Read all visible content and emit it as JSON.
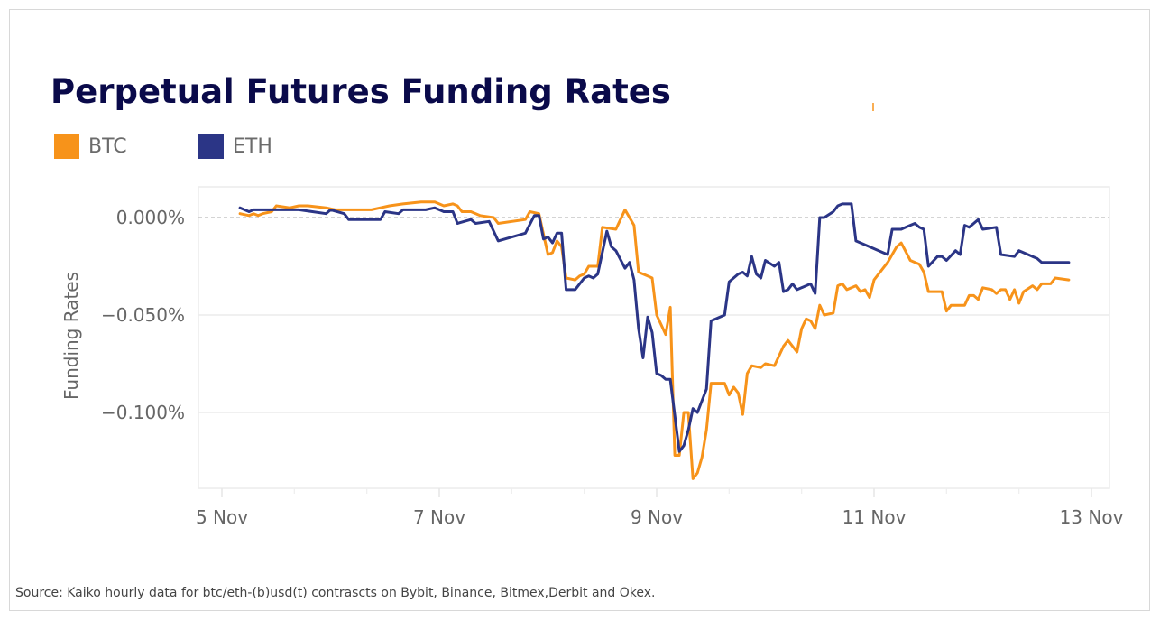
{
  "chart_data": {
    "type": "line",
    "title": "Perpetual Futures Funding Rates",
    "ylabel": "Funding Rates",
    "xlabel": "",
    "x_ticks": [
      "5 Nov",
      "7 Nov",
      "9 Nov",
      "11 Nov",
      "13 Nov"
    ],
    "y_ticks": [
      {
        "value": 0.0,
        "label": "0.000%"
      },
      {
        "value": -0.05,
        "label": "−0.050%"
      },
      {
        "value": -0.1,
        "label": "−0.100%"
      }
    ],
    "y_unit": "%",
    "grid": true,
    "zero_line": "dashed",
    "legend_placement": "top-left",
    "series": [
      {
        "name": "BTC",
        "color": "#f7931a",
        "points": [
          [
            "5 Nov 04:00",
            0.002
          ],
          [
            "5 Nov 06:00",
            0.001
          ],
          [
            "5 Nov 07:00",
            0.002
          ],
          [
            "5 Nov 08:00",
            0.001
          ],
          [
            "5 Nov 09:00",
            0.002
          ],
          [
            "5 Nov 11:00",
            0.003
          ],
          [
            "5 Nov 12:00",
            0.006
          ],
          [
            "5 Nov 15:00",
            0.005
          ],
          [
            "5 Nov 17:00",
            0.006
          ],
          [
            "5 Nov 19:00",
            0.006
          ],
          [
            "5 Nov 23:00",
            0.005
          ],
          [
            "6 Nov 01:00",
            0.004
          ],
          [
            "6 Nov 07:00",
            0.004
          ],
          [
            "6 Nov 09:00",
            0.004
          ],
          [
            "6 Nov 11:00",
            0.005
          ],
          [
            "6 Nov 13:00",
            0.006
          ],
          [
            "6 Nov 16:00",
            0.007
          ],
          [
            "6 Nov 20:00",
            0.008
          ],
          [
            "6 Nov 23:00",
            0.008
          ],
          [
            "7 Nov 01:00",
            0.006
          ],
          [
            "7 Nov 03:00",
            0.007
          ],
          [
            "7 Nov 04:00",
            0.006
          ],
          [
            "7 Nov 05:00",
            0.003
          ],
          [
            "7 Nov 07:00",
            0.003
          ],
          [
            "7 Nov 09:00",
            0.001
          ],
          [
            "7 Nov 12:00",
            0.0
          ],
          [
            "7 Nov 13:00",
            -0.003
          ],
          [
            "7 Nov 19:00",
            -0.001
          ],
          [
            "7 Nov 20:00",
            0.003
          ],
          [
            "7 Nov 22:00",
            0.002
          ],
          [
            "8 Nov 00:00",
            -0.019
          ],
          [
            "8 Nov 01:00",
            -0.018
          ],
          [
            "8 Nov 02:00",
            -0.012
          ],
          [
            "8 Nov 03:00",
            -0.015
          ],
          [
            "8 Nov 04:00",
            -0.031
          ],
          [
            "8 Nov 06:00",
            -0.032
          ],
          [
            "8 Nov 07:00",
            -0.03
          ],
          [
            "8 Nov 08:00",
            -0.029
          ],
          [
            "8 Nov 09:00",
            -0.025
          ],
          [
            "8 Nov 11:00",
            -0.025
          ],
          [
            "8 Nov 12:00",
            -0.005
          ],
          [
            "8 Nov 15:00",
            -0.006
          ],
          [
            "8 Nov 17:00",
            0.004
          ],
          [
            "8 Nov 19:00",
            -0.004
          ],
          [
            "8 Nov 20:00",
            -0.028
          ],
          [
            "8 Nov 22:00",
            -0.03
          ],
          [
            "8 Nov 23:00",
            -0.031
          ],
          [
            "9 Nov 00:00",
            -0.05
          ],
          [
            "9 Nov 01:00",
            -0.055
          ],
          [
            "9 Nov 02:00",
            -0.06
          ],
          [
            "9 Nov 03:00",
            -0.046
          ],
          [
            "9 Nov 04:00",
            -0.122
          ],
          [
            "9 Nov 05:00",
            -0.122
          ],
          [
            "9 Nov 06:00",
            -0.1
          ],
          [
            "9 Nov 07:00",
            -0.1
          ],
          [
            "9 Nov 08:00",
            -0.134
          ],
          [
            "9 Nov 09:00",
            -0.131
          ],
          [
            "9 Nov 10:00",
            -0.123
          ],
          [
            "9 Nov 11:00",
            -0.109
          ],
          [
            "9 Nov 12:00",
            -0.085
          ],
          [
            "9 Nov 15:00",
            -0.085
          ],
          [
            "9 Nov 16:00",
            -0.091
          ],
          [
            "9 Nov 17:00",
            -0.087
          ],
          [
            "9 Nov 18:00",
            -0.09
          ],
          [
            "9 Nov 19:00",
            -0.101
          ],
          [
            "9 Nov 20:00",
            -0.08
          ],
          [
            "9 Nov 21:00",
            -0.076
          ],
          [
            "9 Nov 23:00",
            -0.077
          ],
          [
            "10 Nov 00:00",
            -0.075
          ],
          [
            "10 Nov 02:00",
            -0.076
          ],
          [
            "10 Nov 04:00",
            -0.066
          ],
          [
            "10 Nov 05:00",
            -0.063
          ],
          [
            "10 Nov 07:00",
            -0.069
          ],
          [
            "10 Nov 08:00",
            -0.057
          ],
          [
            "10 Nov 09:00",
            -0.052
          ],
          [
            "10 Nov 10:00",
            -0.053
          ],
          [
            "10 Nov 11:00",
            -0.057
          ],
          [
            "10 Nov 12:00",
            -0.045
          ],
          [
            "10 Nov 13:00",
            -0.05
          ],
          [
            "10 Nov 15:00",
            -0.049
          ],
          [
            "10 Nov 16:00",
            -0.035
          ],
          [
            "10 Nov 17:00",
            -0.034
          ],
          [
            "10 Nov 18:00",
            -0.037
          ],
          [
            "10 Nov 20:00",
            -0.035
          ],
          [
            "10 Nov 21:00",
            -0.038
          ],
          [
            "10 Nov 22:00",
            -0.037
          ],
          [
            "10 Nov 23:00",
            -0.041
          ],
          [
            "11 Nov 00:00",
            -0.032
          ],
          [
            "11 Nov 02:00",
            -0.026
          ],
          [
            "11 Nov 03:00",
            -0.023
          ],
          [
            "11 Nov 04:00",
            -0.019
          ],
          [
            "11 Nov 05:00",
            -0.015
          ],
          [
            "11 Nov 06:00",
            -0.013
          ],
          [
            "11 Nov 08:00",
            -0.022
          ],
          [
            "11 Nov 10:00",
            -0.024
          ],
          [
            "11 Nov 11:00",
            -0.028
          ],
          [
            "11 Nov 12:00",
            -0.038
          ],
          [
            "11 Nov 15:00",
            -0.038
          ],
          [
            "11 Nov 16:00",
            -0.048
          ],
          [
            "11 Nov 17:00",
            -0.045
          ],
          [
            "11 Nov 18:00",
            -0.045
          ],
          [
            "11 Nov 20:00",
            -0.045
          ],
          [
            "11 Nov 21:00",
            -0.04
          ],
          [
            "11 Nov 22:00",
            -0.04
          ],
          [
            "11 Nov 23:00",
            -0.042
          ],
          [
            "12 Nov 00:00",
            -0.036
          ],
          [
            "12 Nov 02:00",
            -0.037
          ],
          [
            "12 Nov 03:00",
            -0.039
          ],
          [
            "12 Nov 04:00",
            -0.037
          ],
          [
            "12 Nov 05:00",
            -0.037
          ],
          [
            "12 Nov 06:00",
            -0.042
          ],
          [
            "12 Nov 07:00",
            -0.037
          ],
          [
            "12 Nov 08:00",
            -0.044
          ],
          [
            "12 Nov 09:00",
            -0.038
          ],
          [
            "12 Nov 11:00",
            -0.035
          ],
          [
            "12 Nov 12:00",
            -0.037
          ],
          [
            "12 Nov 13:00",
            -0.034
          ],
          [
            "12 Nov 15:00",
            -0.034
          ],
          [
            "12 Nov 16:00",
            -0.031
          ],
          [
            "12 Nov 19:00",
            -0.032
          ]
        ]
      },
      {
        "name": "ETH",
        "color": "#2b3586",
        "points": [
          [
            "5 Nov 04:00",
            0.005
          ],
          [
            "5 Nov 06:00",
            0.003
          ],
          [
            "5 Nov 07:00",
            0.004
          ],
          [
            "5 Nov 11:00",
            0.004
          ],
          [
            "5 Nov 17:00",
            0.004
          ],
          [
            "5 Nov 20:00",
            0.003
          ],
          [
            "5 Nov 23:00",
            0.002
          ],
          [
            "6 Nov 00:00",
            0.004
          ],
          [
            "6 Nov 03:00",
            0.002
          ],
          [
            "6 Nov 04:00",
            -0.001
          ],
          [
            "6 Nov 08:00",
            -0.001
          ],
          [
            "6 Nov 11:00",
            -0.001
          ],
          [
            "6 Nov 12:00",
            0.003
          ],
          [
            "6 Nov 15:00",
            0.002
          ],
          [
            "6 Nov 16:00",
            0.004
          ],
          [
            "6 Nov 21:00",
            0.004
          ],
          [
            "6 Nov 23:00",
            0.005
          ],
          [
            "7 Nov 01:00",
            0.003
          ],
          [
            "7 Nov 03:00",
            0.003
          ],
          [
            "7 Nov 04:00",
            -0.003
          ],
          [
            "7 Nov 07:00",
            -0.001
          ],
          [
            "7 Nov 08:00",
            -0.003
          ],
          [
            "7 Nov 11:00",
            -0.002
          ],
          [
            "7 Nov 13:00",
            -0.012
          ],
          [
            "7 Nov 19:00",
            -0.008
          ],
          [
            "7 Nov 21:00",
            0.001
          ],
          [
            "7 Nov 22:00",
            0.001
          ],
          [
            "7 Nov 23:00",
            -0.011
          ],
          [
            "8 Nov 00:00",
            -0.01
          ],
          [
            "8 Nov 01:00",
            -0.013
          ],
          [
            "8 Nov 02:00",
            -0.008
          ],
          [
            "8 Nov 03:00",
            -0.008
          ],
          [
            "8 Nov 04:00",
            -0.037
          ],
          [
            "8 Nov 06:00",
            -0.037
          ],
          [
            "8 Nov 08:00",
            -0.031
          ],
          [
            "8 Nov 09:00",
            -0.03
          ],
          [
            "8 Nov 10:00",
            -0.031
          ],
          [
            "8 Nov 11:00",
            -0.029
          ],
          [
            "8 Nov 13:00",
            -0.007
          ],
          [
            "8 Nov 14:00",
            -0.015
          ],
          [
            "8 Nov 15:00",
            -0.017
          ],
          [
            "8 Nov 17:00",
            -0.026
          ],
          [
            "8 Nov 18:00",
            -0.023
          ],
          [
            "8 Nov 19:00",
            -0.032
          ],
          [
            "8 Nov 20:00",
            -0.057
          ],
          [
            "8 Nov 21:00",
            -0.072
          ],
          [
            "8 Nov 22:00",
            -0.051
          ],
          [
            "8 Nov 23:00",
            -0.059
          ],
          [
            "9 Nov 00:00",
            -0.08
          ],
          [
            "9 Nov 01:00",
            -0.081
          ],
          [
            "9 Nov 02:00",
            -0.083
          ],
          [
            "9 Nov 03:00",
            -0.083
          ],
          [
            "9 Nov 05:00",
            -0.12
          ],
          [
            "9 Nov 06:00",
            -0.117
          ],
          [
            "9 Nov 07:00",
            -0.109
          ],
          [
            "9 Nov 08:00",
            -0.098
          ],
          [
            "9 Nov 09:00",
            -0.1
          ],
          [
            "9 Nov 10:00",
            -0.094
          ],
          [
            "9 Nov 11:00",
            -0.088
          ],
          [
            "9 Nov 12:00",
            -0.053
          ],
          [
            "9 Nov 15:00",
            -0.05
          ],
          [
            "9 Nov 16:00",
            -0.033
          ],
          [
            "9 Nov 18:00",
            -0.029
          ],
          [
            "9 Nov 19:00",
            -0.028
          ],
          [
            "9 Nov 20:00",
            -0.03
          ],
          [
            "9 Nov 21:00",
            -0.02
          ],
          [
            "9 Nov 22:00",
            -0.029
          ],
          [
            "9 Nov 23:00",
            -0.031
          ],
          [
            "10 Nov 00:00",
            -0.022
          ],
          [
            "10 Nov 02:00",
            -0.025
          ],
          [
            "10 Nov 03:00",
            -0.023
          ],
          [
            "10 Nov 04:00",
            -0.038
          ],
          [
            "10 Nov 05:00",
            -0.037
          ],
          [
            "10 Nov 06:00",
            -0.034
          ],
          [
            "10 Nov 07:00",
            -0.037
          ],
          [
            "10 Nov 10:00",
            -0.034
          ],
          [
            "10 Nov 11:00",
            -0.039
          ],
          [
            "10 Nov 12:00",
            0.0
          ],
          [
            "10 Nov 13:00",
            0.0
          ],
          [
            "10 Nov 15:00",
            0.003
          ],
          [
            "10 Nov 16:00",
            0.006
          ],
          [
            "10 Nov 17:00",
            0.007
          ],
          [
            "10 Nov 19:00",
            0.007
          ],
          [
            "10 Nov 20:00",
            -0.012
          ],
          [
            "10 Nov 23:00",
            -0.015
          ],
          [
            "11 Nov 02:00",
            -0.018
          ],
          [
            "11 Nov 03:00",
            -0.019
          ],
          [
            "11 Nov 04:00",
            -0.006
          ],
          [
            "11 Nov 06:00",
            -0.006
          ],
          [
            "11 Nov 07:00",
            -0.005
          ],
          [
            "11 Nov 09:00",
            -0.003
          ],
          [
            "11 Nov 10:00",
            -0.005
          ],
          [
            "11 Nov 11:00",
            -0.006
          ],
          [
            "11 Nov 12:00",
            -0.025
          ],
          [
            "11 Nov 14:00",
            -0.02
          ],
          [
            "11 Nov 15:00",
            -0.02
          ],
          [
            "11 Nov 16:00",
            -0.022
          ],
          [
            "11 Nov 18:00",
            -0.017
          ],
          [
            "11 Nov 19:00",
            -0.019
          ],
          [
            "11 Nov 20:00",
            -0.004
          ],
          [
            "11 Nov 21:00",
            -0.005
          ],
          [
            "11 Nov 22:00",
            -0.003
          ],
          [
            "11 Nov 23:00",
            -0.001
          ],
          [
            "12 Nov 00:00",
            -0.006
          ],
          [
            "12 Nov 03:00",
            -0.005
          ],
          [
            "12 Nov 04:00",
            -0.019
          ],
          [
            "12 Nov 07:00",
            -0.02
          ],
          [
            "12 Nov 08:00",
            -0.017
          ],
          [
            "12 Nov 11:00",
            -0.02
          ],
          [
            "12 Nov 12:00",
            -0.021
          ],
          [
            "12 Nov 13:00",
            -0.023
          ],
          [
            "12 Nov 15:00",
            -0.023
          ],
          [
            "12 Nov 18:00",
            -0.023
          ],
          [
            "12 Nov 19:00",
            -0.023
          ]
        ]
      }
    ]
  },
  "source": "Source: Kaiko hourly  data for btc/eth-(b)usd(t) contrascts on Bybit, Binance, Bitmex,Derbit and Okex."
}
